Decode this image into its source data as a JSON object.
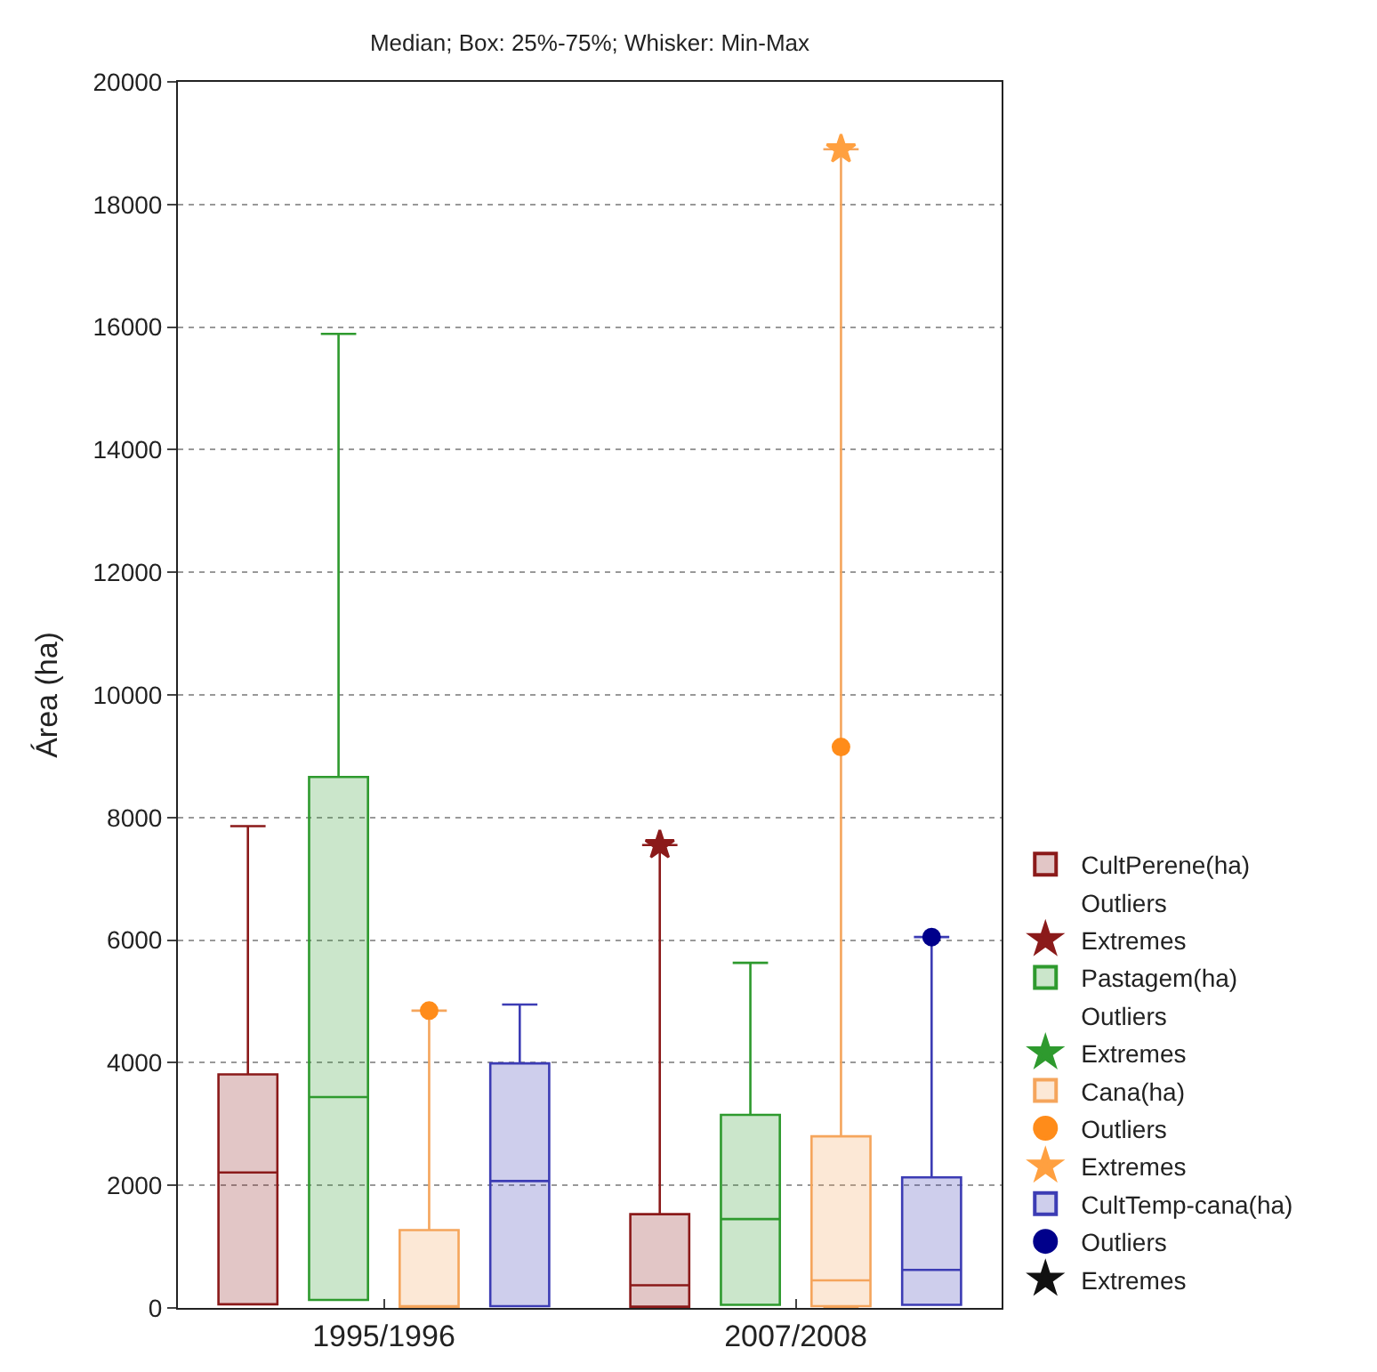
{
  "chart_data": {
    "type": "box",
    "title": "Median; Box: 25%-75%; Whisker: Min-Max",
    "ylabel": "Área (ha)",
    "categories": [
      "1995/1996",
      "2007/2008"
    ],
    "ylim": [
      0,
      20000
    ],
    "yticks": [
      0,
      2000,
      4000,
      6000,
      8000,
      10000,
      12000,
      14000,
      16000,
      18000,
      20000
    ],
    "grid": "y",
    "legend": "bottom right",
    "series": [
      {
        "name": "CultPerene(ha)",
        "color": "#8b1a1a",
        "boxes": [
          {
            "low": 60,
            "q1": 60,
            "median": 2210,
            "q3": 3810,
            "high": 7860
          },
          {
            "low": 20,
            "q1": 20,
            "median": 370,
            "q3": 1530,
            "high": 7550
          }
        ]
      },
      {
        "type": "scatter",
        "name": "Outliers",
        "marker": "none",
        "x": [
          "1995/1996",
          "2007/2008"
        ],
        "values": [
          null,
          null
        ]
      },
      {
        "type": "scatter",
        "name": "Extremes",
        "color": "#8b1a1a",
        "marker": "star",
        "x": [
          "1995/1996",
          "2007/2008"
        ],
        "values": [
          null,
          7550
        ]
      },
      {
        "name": "Pastagem(ha)",
        "color": "#2e9a2e",
        "boxes": [
          {
            "low": 130,
            "q1": 130,
            "median": 3440,
            "q3": 8660,
            "high": 15890
          },
          {
            "low": 50,
            "q1": 50,
            "median": 1450,
            "q3": 3150,
            "high": 5630
          }
        ]
      },
      {
        "type": "scatter",
        "name": "Outliers",
        "marker": "none",
        "x": [
          "1995/1996",
          "2007/2008"
        ],
        "values": [
          null,
          null
        ]
      },
      {
        "type": "scatter",
        "name": "Extremes",
        "color": "#2e9a2e",
        "marker": "star",
        "x": [
          "1995/1996",
          "2007/2008"
        ],
        "values": [
          null,
          null
        ]
      },
      {
        "name": "Cana(ha)",
        "color": "#f5a55c",
        "boxes": [
          {
            "low": 0,
            "q1": 0,
            "median": 20,
            "q3": 1270,
            "high": 4850
          },
          {
            "low": 0,
            "q1": 30,
            "median": 450,
            "q3": 2800,
            "high": 18900
          }
        ]
      },
      {
        "type": "scatter",
        "name": "Outliers",
        "color": "#ff8c1a",
        "marker": "circle",
        "x": [
          "1995/1996",
          "2007/2008"
        ],
        "values": [
          4850,
          9150
        ]
      },
      {
        "type": "scatter",
        "name": "Extremes",
        "color": "#ffa040",
        "marker": "star",
        "x": [
          "1995/1996",
          "2007/2008"
        ],
        "values": [
          null,
          18900
        ]
      },
      {
        "name": "CultTemp-cana(ha)",
        "color": "#3c3cb4",
        "boxes": [
          {
            "low": 30,
            "q1": 30,
            "median": 2070,
            "q3": 3990,
            "high": 4950
          },
          {
            "low": 50,
            "q1": 50,
            "median": 620,
            "q3": 2130,
            "high": 6050
          }
        ]
      },
      {
        "type": "scatter",
        "name": "Outliers",
        "color": "#00008b",
        "marker": "circle",
        "x": [
          "1995/1996",
          "2007/2008"
        ],
        "values": [
          null,
          6050
        ]
      },
      {
        "type": "scatter",
        "name": "Extremes",
        "color": "#111111",
        "marker": "star",
        "x": [
          "1995/1996",
          "2007/2008"
        ],
        "values": [
          null,
          null
        ]
      }
    ]
  }
}
